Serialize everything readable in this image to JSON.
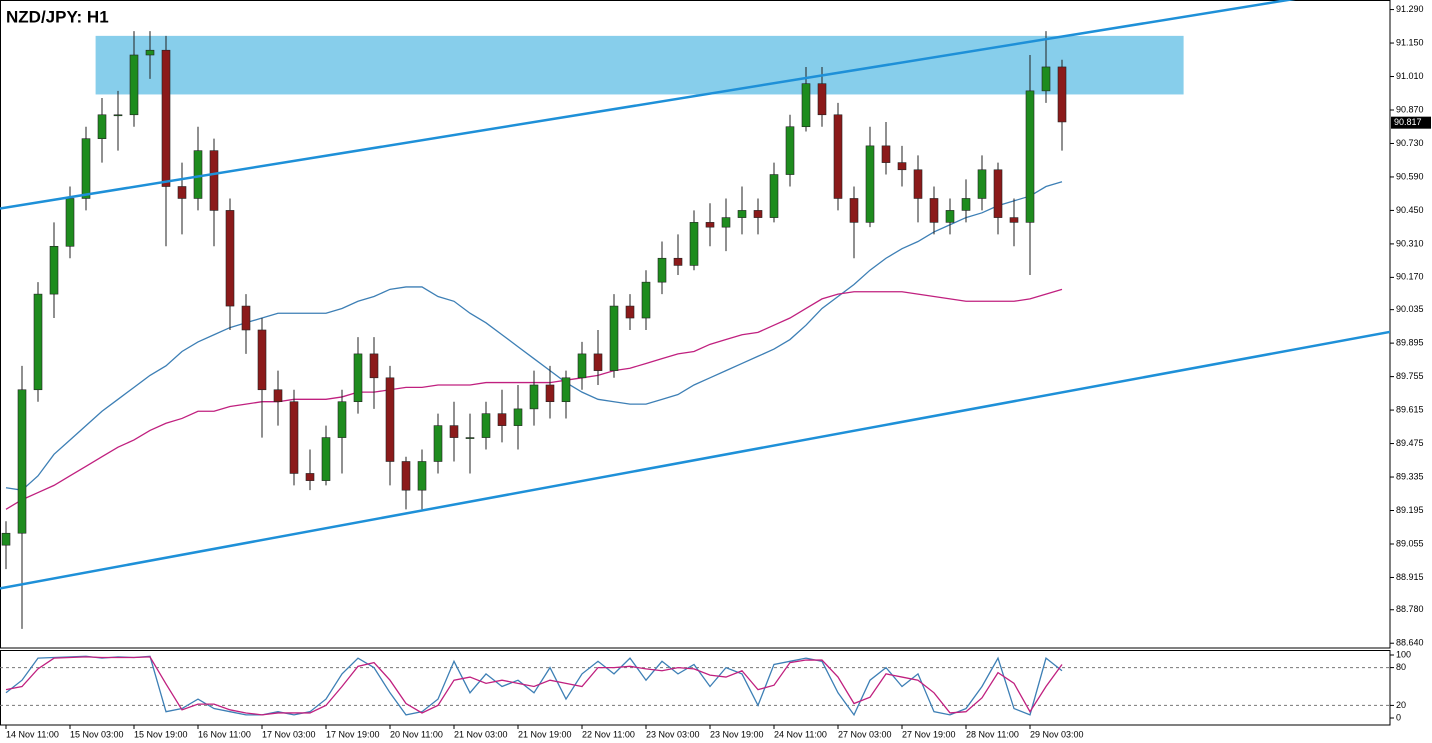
{
  "chart_data": [
    {
      "type": "candlestick",
      "title": "NZD/JPY: H1",
      "categories": [
        "14 Nov 11:00",
        null,
        null,
        null,
        "15 Nov 03:00",
        null,
        null,
        null,
        "15 Nov 19:00",
        null,
        null,
        null,
        "16 Nov 11:00",
        null,
        null,
        null,
        "17 Nov 03:00",
        null,
        null,
        null,
        "17 Nov 19:00",
        null,
        null,
        null,
        "20 Nov 11:00",
        null,
        null,
        null,
        "21 Nov 03:00",
        null,
        null,
        null,
        "21 Nov 19:00",
        null,
        null,
        null,
        "22 Nov 11:00",
        null,
        null,
        null,
        "23 Nov 03:00",
        null,
        null,
        null,
        "23 Nov 19:00",
        null,
        null,
        null,
        "24 Nov 11:00",
        null,
        null,
        null,
        "27 Nov 03:00",
        null,
        null,
        null,
        "27 Nov 19:00",
        null,
        null,
        null,
        "28 Nov 11:00",
        null,
        null,
        null,
        "29 Nov 03:00",
        null,
        null
      ],
      "open": [
        89.05,
        89.1,
        89.7,
        90.1,
        90.3,
        90.5,
        90.75,
        90.85,
        90.85,
        91.1,
        91.12,
        90.55,
        90.5,
        90.7,
        90.45,
        90.05,
        89.95,
        89.7,
        89.65,
        89.35,
        89.32,
        89.5,
        89.65,
        89.85,
        89.75,
        89.4,
        89.28,
        89.4,
        89.55,
        89.5,
        89.5,
        89.6,
        89.55,
        89.62,
        89.72,
        89.65,
        89.75,
        89.85,
        89.78,
        90.05,
        90.0,
        90.15,
        90.25,
        90.22,
        90.4,
        90.38,
        90.42,
        90.45,
        90.42,
        90.6,
        90.8,
        90.98,
        90.85,
        90.5,
        90.4,
        90.72,
        90.65,
        90.62,
        90.5,
        90.4,
        90.45,
        90.5,
        90.62,
        90.42,
        90.4,
        90.95,
        91.05
      ],
      "high": [
        89.15,
        89.8,
        90.15,
        90.4,
        90.55,
        90.8,
        90.92,
        90.95,
        91.2,
        91.2,
        91.18,
        90.65,
        90.8,
        90.75,
        90.5,
        90.1,
        90.0,
        89.78,
        89.7,
        89.45,
        89.55,
        89.7,
        89.92,
        89.92,
        89.8,
        89.42,
        89.45,
        89.6,
        89.65,
        89.6,
        89.65,
        89.7,
        89.72,
        89.78,
        89.8,
        89.78,
        89.9,
        89.95,
        90.1,
        90.1,
        90.2,
        90.32,
        90.35,
        90.45,
        90.48,
        90.5,
        90.55,
        90.5,
        90.65,
        90.85,
        91.05,
        91.05,
        90.9,
        90.55,
        90.8,
        90.82,
        90.72,
        90.68,
        90.55,
        90.5,
        90.58,
        90.68,
        90.65,
        90.5,
        91.1,
        91.2,
        91.08
      ],
      "low": [
        88.95,
        88.7,
        89.65,
        90.0,
        90.25,
        90.45,
        90.65,
        90.7,
        90.8,
        91.0,
        90.3,
        90.35,
        90.45,
        90.3,
        89.95,
        89.85,
        89.5,
        89.55,
        89.3,
        89.28,
        89.3,
        89.35,
        89.6,
        89.62,
        89.3,
        89.2,
        89.2,
        89.35,
        89.4,
        89.35,
        89.45,
        89.48,
        89.45,
        89.55,
        89.58,
        89.58,
        89.7,
        89.72,
        89.75,
        89.95,
        89.95,
        90.1,
        90.18,
        90.2,
        90.3,
        90.28,
        90.35,
        90.35,
        90.4,
        90.55,
        90.78,
        90.8,
        90.45,
        90.25,
        90.38,
        90.6,
        90.55,
        90.4,
        90.35,
        90.35,
        90.4,
        90.45,
        90.35,
        90.3,
        90.18,
        90.9,
        90.7
      ],
      "close": [
        89.1,
        89.7,
        90.1,
        90.3,
        90.5,
        90.75,
        90.85,
        90.85,
        91.1,
        91.12,
        90.55,
        90.5,
        90.7,
        90.45,
        90.05,
        89.95,
        89.7,
        89.65,
        89.35,
        89.32,
        89.5,
        89.65,
        89.85,
        89.75,
        89.4,
        89.28,
        89.4,
        89.55,
        89.5,
        89.5,
        89.6,
        89.55,
        89.62,
        89.72,
        89.65,
        89.75,
        89.85,
        89.78,
        90.05,
        90.0,
        90.15,
        90.25,
        90.22,
        90.4,
        90.38,
        90.42,
        90.45,
        90.42,
        90.6,
        90.8,
        90.98,
        90.85,
        90.5,
        90.4,
        90.72,
        90.65,
        90.62,
        90.5,
        90.4,
        90.45,
        90.5,
        90.62,
        90.42,
        90.4,
        90.95,
        91.05,
        90.82
      ],
      "up_color": "#1e8c1e",
      "down_color": "#8b1a1a",
      "series": [
        {
          "color": "#3d7fb5",
          "values": [
            89.29,
            89.28,
            89.34,
            89.43,
            89.49,
            89.55,
            89.61,
            89.66,
            89.71,
            89.76,
            89.8,
            89.86,
            89.9,
            89.93,
            89.96,
            89.98,
            90.0,
            90.02,
            90.02,
            90.02,
            90.02,
            90.04,
            90.07,
            90.09,
            90.12,
            90.13,
            90.13,
            90.09,
            90.07,
            90.02,
            89.98,
            89.93,
            89.88,
            89.83,
            89.78,
            89.73,
            89.69,
            89.66,
            89.65,
            89.64,
            89.64,
            89.66,
            89.68,
            89.72,
            89.75,
            89.78,
            89.81,
            89.84,
            89.87,
            89.91,
            89.97,
            90.04,
            90.09,
            90.14,
            90.2,
            90.25,
            90.29,
            90.32,
            90.36,
            90.39,
            90.42,
            90.44,
            90.47,
            90.49,
            90.51,
            90.55,
            90.57
          ]
        },
        {
          "color": "#c0207f",
          "values": [
            89.2,
            89.24,
            89.27,
            89.3,
            89.34,
            89.38,
            89.42,
            89.46,
            89.49,
            89.53,
            89.56,
            89.58,
            89.61,
            89.61,
            89.63,
            89.64,
            89.65,
            89.65,
            89.66,
            89.66,
            89.66,
            89.67,
            89.69,
            89.69,
            89.7,
            89.71,
            89.71,
            89.72,
            89.72,
            89.72,
            89.73,
            89.73,
            89.73,
            89.73,
            89.73,
            89.74,
            89.75,
            89.76,
            89.78,
            89.79,
            89.81,
            89.83,
            89.85,
            89.86,
            89.89,
            89.91,
            89.93,
            89.94,
            89.97,
            90.0,
            90.04,
            90.08,
            90.1,
            90.11,
            90.11,
            90.11,
            90.11,
            90.1,
            90.09,
            90.08,
            90.07,
            90.07,
            90.07,
            90.07,
            90.08,
            90.1,
            90.12
          ]
        }
      ],
      "trendlines": [
        {
          "color": "#1e90d8",
          "x": [
            0,
            66
          ],
          "y": [
            90.462,
            91.177
          ]
        },
        {
          "color": "#1e90d8",
          "x": [
            0,
            66
          ],
          "y": [
            88.874,
            89.689
          ]
        }
      ],
      "zone": {
        "color": "#87ceeb",
        "x": [
          5.6,
          73.6
        ],
        "y": [
          90.935,
          91.18
        ]
      },
      "last_price": 90.817,
      "ylim": [
        88.62,
        91.33
      ],
      "yticks": [
        {
          "value": 91.29,
          "label": "91.290"
        },
        {
          "value": 91.15,
          "label": "91.150"
        },
        {
          "value": 91.01,
          "label": "91.010"
        },
        {
          "value": 90.87,
          "label": "90.870"
        },
        {
          "value": 90.73,
          "label": "90.730"
        },
        {
          "value": 90.59,
          "label": "90.590"
        },
        {
          "value": 90.45,
          "label": "90.450"
        },
        {
          "value": 90.31,
          "label": "90.310"
        },
        {
          "value": 90.17,
          "label": "90.170"
        },
        90.035,
        89.895,
        89.755,
        89.615,
        89.475,
        89.335,
        89.195,
        89.055,
        88.915,
        {
          "value": 88.78,
          "label": "88.780"
        },
        {
          "value": 88.64,
          "label": "88.640"
        }
      ]
    },
    {
      "type": "line",
      "series": [
        {
          "color": "#3d7fb5",
          "values": [
            40,
            60,
            95,
            96,
            97,
            98,
            95,
            97,
            96,
            98,
            10,
            15,
            30,
            15,
            10,
            5,
            5,
            10,
            5,
            10,
            30,
            70,
            95,
            80,
            40,
            5,
            10,
            30,
            90,
            40,
            70,
            50,
            60,
            40,
            80,
            30,
            70,
            90,
            70,
            95,
            60,
            90,
            70,
            85,
            50,
            80,
            70,
            20,
            85,
            90,
            95,
            90,
            40,
            5,
            60,
            80,
            50,
            70,
            10,
            5,
            15,
            50,
            95,
            15,
            5,
            95,
            75
          ]
        },
        {
          "color": "#c0207f",
          "values": [
            45,
            50,
            78,
            95,
            96,
            97,
            96,
            96,
            96,
            97,
            54,
            13,
            22,
            22,
            13,
            8,
            5,
            8,
            8,
            8,
            20,
            50,
            82,
            88,
            60,
            23,
            8,
            20,
            60,
            65,
            55,
            60,
            55,
            50,
            60,
            55,
            50,
            80,
            80,
            82,
            78,
            75,
            80,
            78,
            68,
            65,
            75,
            45,
            52,
            88,
            92,
            92,
            65,
            23,
            33,
            70,
            65,
            60,
            40,
            8,
            10,
            32,
            72,
            55,
            10,
            50,
            85
          ]
        }
      ],
      "levels": [
        20,
        80
      ],
      "ylim": [
        0,
        100
      ],
      "yticks": [
        0,
        20,
        80,
        100
      ]
    }
  ]
}
